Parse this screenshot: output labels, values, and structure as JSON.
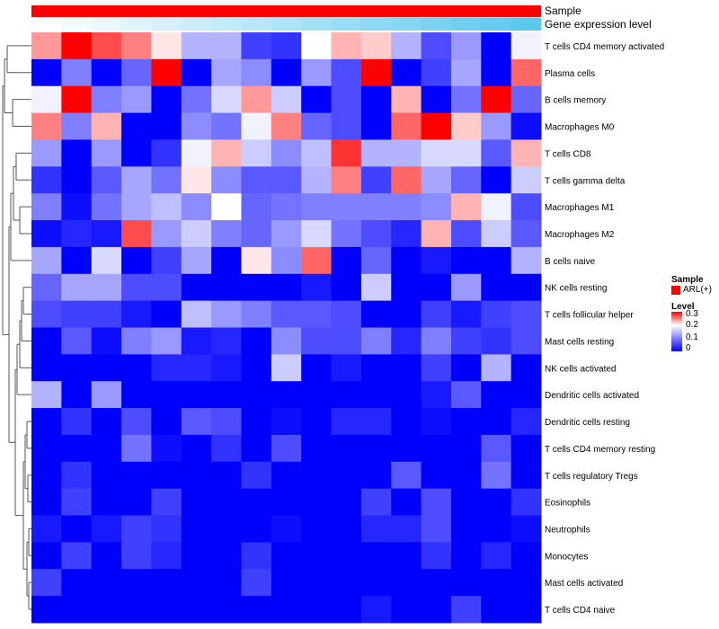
{
  "chart_data": {
    "type": "heatmap",
    "title": "",
    "annotations": {
      "sample_label": "Sample",
      "gene_label": "Gene expression level",
      "sample_color": "#ff0000",
      "gene_gradient": [
        "#ffffff",
        "#5bc8ee"
      ]
    },
    "rows": [
      "T cells CD4 memory activated",
      "Plasma cells",
      "B cells memory",
      "Macrophages M0",
      "T cells CD8",
      "T cells gamma delta",
      "Macrophages M1",
      "Macrophages M2",
      "B cells naive",
      "NK cells resting",
      "T cells follicular helper",
      "Mast cells resting",
      "NK cells activated",
      "Dendritic cells activated",
      "Dendritic cells resting",
      "T cells CD4 memory resting",
      "T cells regulatory  Tregs",
      "Eosinophils",
      "Neutrophils",
      "Monocytes",
      "Mast cells activated",
      "T cells CD4 naive"
    ],
    "values": [
      [
        0.24,
        0.3,
        0.27,
        0.25,
        0.21,
        0.14,
        0.14,
        0.05,
        0.04,
        0.2,
        0.23,
        0.22,
        0.14,
        0.06,
        0.12,
        0.0,
        0.19
      ],
      [
        0.0,
        0.1,
        0.0,
        0.08,
        0.3,
        0.0,
        0.13,
        0.11,
        0.0,
        0.12,
        0.06,
        0.3,
        0.0,
        0.05,
        0.13,
        0.0,
        0.26
      ],
      [
        0.19,
        0.3,
        0.1,
        0.12,
        0.0,
        0.09,
        0.17,
        0.24,
        0.16,
        0.0,
        0.06,
        0.0,
        0.23,
        0.0,
        0.09,
        0.3,
        0.08
      ],
      [
        0.25,
        0.1,
        0.23,
        0.0,
        0.0,
        0.11,
        0.09,
        0.19,
        0.25,
        0.08,
        0.06,
        0.0,
        0.26,
        0.3,
        0.22,
        0.12,
        0.01
      ],
      [
        0.12,
        0.0,
        0.12,
        0.0,
        0.04,
        0.19,
        0.23,
        0.16,
        0.11,
        0.15,
        0.28,
        0.14,
        0.14,
        0.17,
        0.17,
        0.07,
        0.23
      ],
      [
        0.04,
        0.0,
        0.07,
        0.13,
        0.09,
        0.21,
        0.11,
        0.07,
        0.07,
        0.14,
        0.25,
        0.05,
        0.26,
        0.13,
        0.08,
        0.0,
        0.16
      ],
      [
        0.1,
        0.01,
        0.09,
        0.13,
        0.15,
        0.11,
        0.2,
        0.08,
        0.09,
        0.1,
        0.1,
        0.1,
        0.1,
        0.11,
        0.23,
        0.19,
        0.06
      ],
      [
        0.01,
        0.03,
        0.02,
        0.27,
        0.12,
        0.16,
        0.1,
        0.08,
        0.12,
        0.17,
        0.09,
        0.06,
        0.03,
        0.23,
        0.06,
        0.16,
        0.07
      ],
      [
        0.13,
        0.0,
        0.17,
        0.0,
        0.05,
        0.13,
        0.0,
        0.21,
        0.11,
        0.26,
        0.0,
        0.08,
        0.0,
        0.02,
        0.0,
        0.0,
        0.14
      ],
      [
        0.08,
        0.13,
        0.13,
        0.06,
        0.06,
        0.0,
        0.0,
        0.0,
        0.0,
        0.02,
        0.0,
        0.16,
        0.0,
        0.0,
        0.12,
        0.0,
        0.0
      ],
      [
        0.06,
        0.05,
        0.05,
        0.02,
        0.0,
        0.15,
        0.12,
        0.1,
        0.07,
        0.07,
        0.06,
        0.0,
        0.0,
        0.05,
        0.02,
        0.05,
        0.06
      ],
      [
        0.0,
        0.07,
        0.01,
        0.1,
        0.12,
        0.02,
        0.03,
        0.0,
        0.11,
        0.06,
        0.06,
        0.1,
        0.03,
        0.1,
        0.05,
        0.04,
        0.06
      ],
      [
        0.0,
        0.0,
        0.0,
        0.0,
        0.03,
        0.03,
        0.02,
        0.0,
        0.16,
        0.0,
        0.02,
        0.0,
        0.0,
        0.05,
        0.0,
        0.14,
        0.0
      ],
      [
        0.14,
        0.0,
        0.12,
        0.0,
        0.0,
        0.0,
        0.0,
        0.0,
        0.0,
        0.0,
        0.0,
        0.0,
        0.0,
        0.02,
        0.07,
        0.0,
        0.0
      ],
      [
        0.0,
        0.04,
        0.0,
        0.06,
        0.0,
        0.07,
        0.06,
        0.0,
        0.01,
        0.0,
        0.03,
        0.03,
        0.0,
        0.01,
        0.0,
        0.0,
        0.03
      ],
      [
        0.0,
        0.0,
        0.0,
        0.09,
        0.01,
        0.0,
        0.04,
        0.0,
        0.06,
        0.0,
        0.0,
        0.0,
        0.0,
        0.0,
        0.0,
        0.07,
        0.0
      ],
      [
        0.0,
        0.04,
        0.0,
        0.0,
        0.0,
        0.0,
        0.0,
        0.04,
        0.0,
        0.0,
        0.0,
        0.0,
        0.07,
        0.0,
        0.0,
        0.09,
        0.0
      ],
      [
        0.0,
        0.05,
        0.0,
        0.0,
        0.05,
        0.0,
        0.0,
        0.0,
        0.0,
        0.0,
        0.0,
        0.05,
        0.0,
        0.06,
        0.0,
        0.0,
        0.04
      ],
      [
        0.02,
        0.0,
        0.02,
        0.05,
        0.04,
        0.0,
        0.0,
        0.0,
        0.01,
        0.0,
        0.0,
        0.03,
        0.03,
        0.06,
        0.0,
        0.0,
        0.01
      ],
      [
        0.0,
        0.05,
        0.0,
        0.05,
        0.03,
        0.0,
        0.0,
        0.04,
        0.0,
        0.0,
        0.0,
        0.0,
        0.0,
        0.04,
        0.0,
        0.03,
        0.0
      ],
      [
        0.05,
        0.0,
        0.0,
        0.0,
        0.0,
        0.0,
        0.0,
        0.05,
        0.0,
        0.0,
        0.0,
        0.0,
        0.0,
        0.0,
        0.0,
        0.0,
        0.0
      ],
      [
        0.0,
        0.0,
        0.0,
        0.0,
        0.0,
        0.0,
        0.0,
        0.0,
        0.0,
        0.0,
        0.0,
        0.02,
        0.0,
        0.0,
        0.05,
        0.0,
        0.0
      ]
    ],
    "gene_expression": [
      0.0,
      0.06,
      0.12,
      0.19,
      0.25,
      0.31,
      0.37,
      0.44,
      0.5,
      0.56,
      0.62,
      0.69,
      0.75,
      0.81,
      0.87,
      0.94,
      1.0
    ],
    "colorscale": {
      "low": "#0000ff",
      "mid": "#ffffff",
      "high": "#ff0000",
      "min": 0,
      "mid_value": 0.2,
      "max": 0.3
    },
    "legend": {
      "sample_title": "Sample",
      "sample_entry": "ARL(+)",
      "level_title": "Level",
      "ticks": [
        "0.3",
        "0.2",
        "0.1",
        "0"
      ]
    },
    "dendrogram": "row clustering (left)"
  }
}
